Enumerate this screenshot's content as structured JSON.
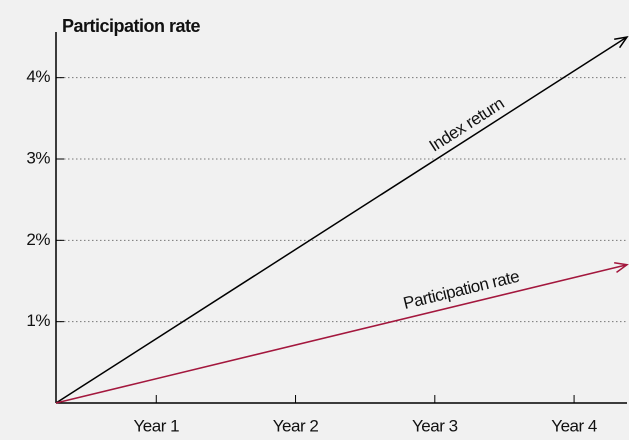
{
  "chart_data": {
    "type": "line",
    "title": "Participation rate",
    "xlim": [
      0.28,
      4.38
    ],
    "xticks": [
      {
        "value": 1,
        "label": "Year 1"
      },
      {
        "value": 2,
        "label": "Year 2"
      },
      {
        "value": 3,
        "label": "Year 3"
      },
      {
        "value": 4,
        "label": "Year 4"
      }
    ],
    "ylim": [
      0,
      4.5
    ],
    "yticks": [
      {
        "value": 1,
        "label": "1%"
      },
      {
        "value": 2,
        "label": "2%"
      },
      {
        "value": 3,
        "label": "3%"
      },
      {
        "value": 4,
        "label": "4%"
      }
    ],
    "grid": true,
    "series": [
      {
        "name": "Index return",
        "color": "#000000",
        "x": [
          0.28,
          4.38
        ],
        "values": [
          0,
          4.5
        ]
      },
      {
        "name": "Participation rate",
        "color": "#a3173d",
        "x": [
          0.28,
          4.38
        ],
        "values": [
          0,
          1.7
        ]
      }
    ]
  }
}
